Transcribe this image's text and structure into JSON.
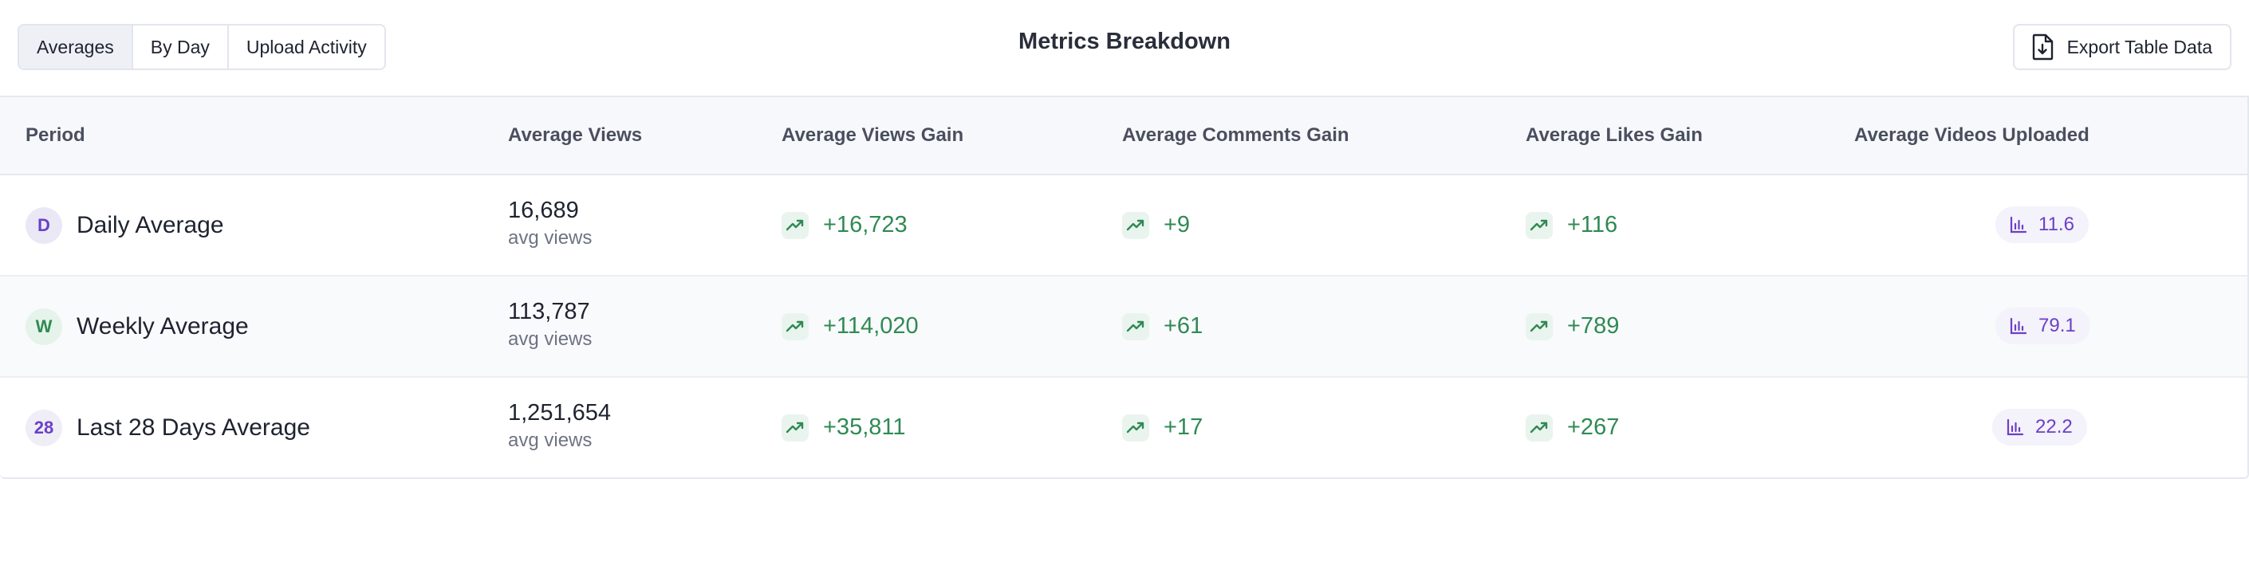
{
  "header": {
    "tabs": [
      {
        "label": "Averages",
        "active": true
      },
      {
        "label": "By Day",
        "active": false
      },
      {
        "label": "Upload Activity",
        "active": false
      }
    ],
    "title": "Metrics Breakdown",
    "export_label": "Export Table Data",
    "export_icon": "file-download-icon"
  },
  "table": {
    "columns": [
      "Period",
      "Average Views",
      "Average Views Gain",
      "Average Comments Gain",
      "Average Likes Gain",
      "Average Videos Uploaded"
    ],
    "views_unit": "avg views",
    "rows": [
      {
        "badge": "D",
        "label": "Daily Average",
        "views": "16,689",
        "views_gain": "+16,723",
        "comments_gain": "+9",
        "likes_gain": "+116",
        "videos": "11.6"
      },
      {
        "badge": "W",
        "label": "Weekly Average",
        "views": "113,787",
        "views_gain": "+114,020",
        "comments_gain": "+61",
        "likes_gain": "+789",
        "videos": "79.1"
      },
      {
        "badge": "28",
        "label": "Last 28 Days Average",
        "views": "1,251,654",
        "views_gain": "+35,811",
        "comments_gain": "+17",
        "likes_gain": "+267",
        "videos": "22.2"
      }
    ]
  },
  "colors": {
    "gain_green": "#2f8a53",
    "accent_purple": "#6b3fc8"
  }
}
